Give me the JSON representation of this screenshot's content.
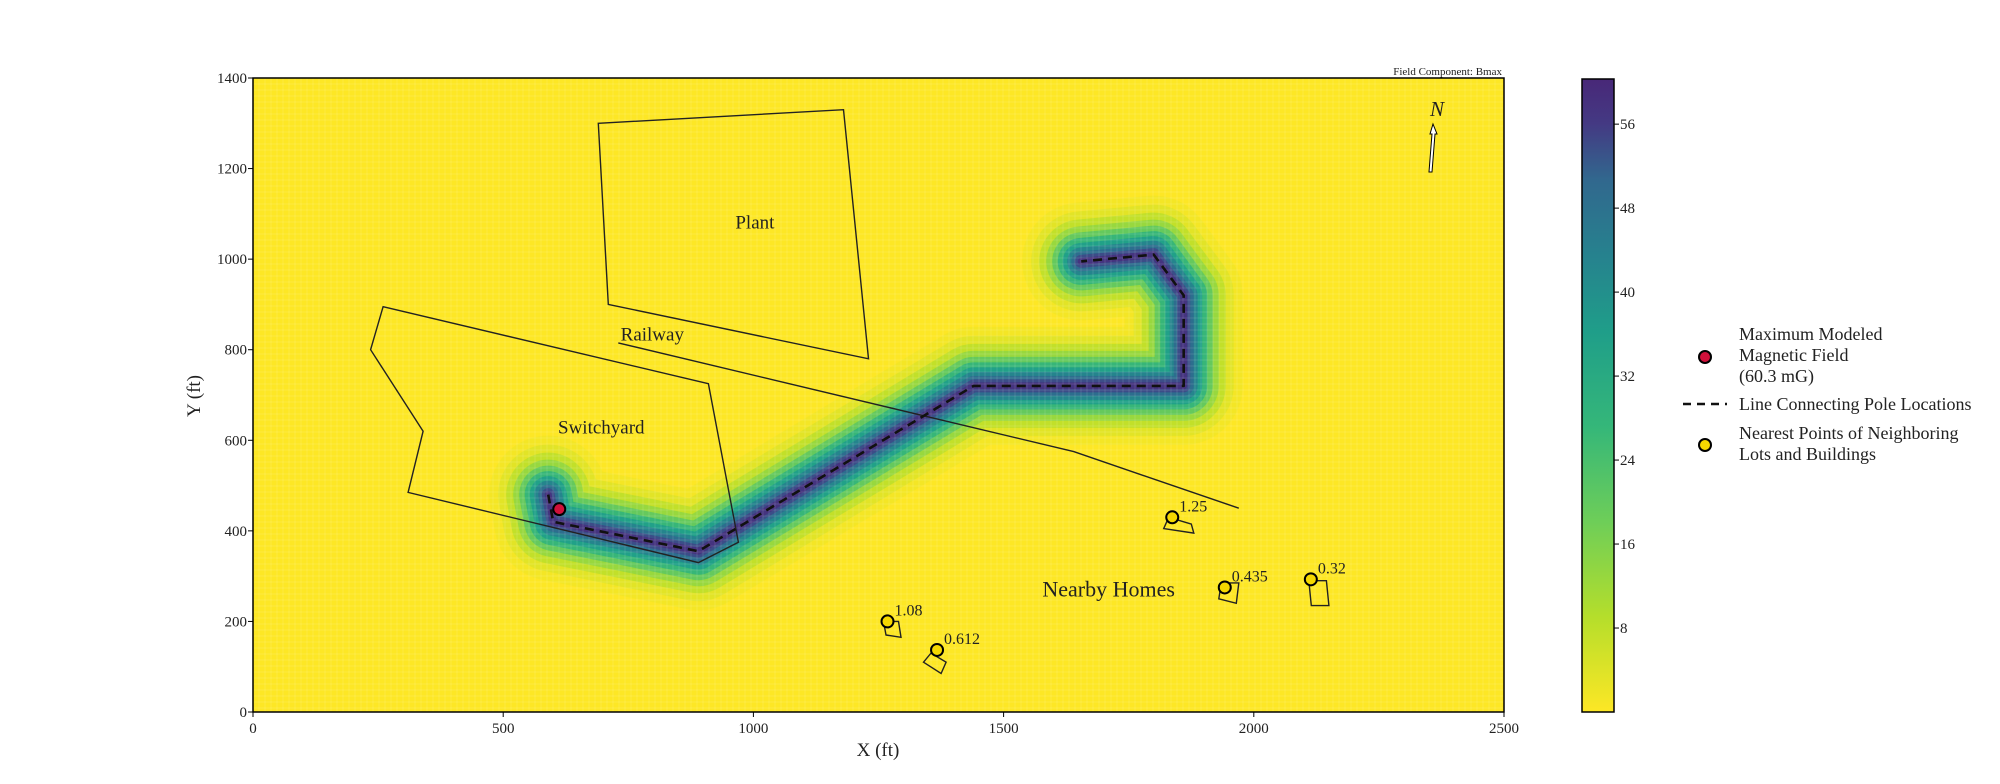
{
  "chart_data": {
    "type": "heatmap",
    "title": "Field Component: Bmax",
    "xlabel": "X (ft)",
    "ylabel": "Y (ft)",
    "xlim": [
      0,
      2500
    ],
    "ylim": [
      0,
      1400
    ],
    "xticks": [
      0,
      500,
      1000,
      1500,
      2000,
      2500
    ],
    "yticks": [
      0,
      200,
      400,
      600,
      800,
      1000,
      1200,
      1400
    ],
    "colormap": "viridis_r",
    "colorbar": {
      "min": 0,
      "max": 60.3,
      "ticks": [
        8,
        16,
        24,
        32,
        40,
        48,
        56
      ]
    },
    "line_path": [
      [
        590,
        480
      ],
      [
        600,
        420
      ],
      [
        890,
        355
      ],
      [
        1440,
        720
      ],
      [
        1860,
        720
      ],
      [
        1860,
        920
      ],
      [
        1800,
        1010
      ],
      [
        1655,
        995
      ]
    ],
    "max_point": {
      "x": 612,
      "y": 448,
      "value": 60.3
    },
    "nearest_points": [
      {
        "x": 1837,
        "y": 430,
        "label": "1.25"
      },
      {
        "x": 1942,
        "y": 275,
        "label": "0.435"
      },
      {
        "x": 2114,
        "y": 293,
        "label": "0.32"
      },
      {
        "x": 1268,
        "y": 200,
        "label": "1.08"
      },
      {
        "x": 1367,
        "y": 137,
        "label": "0.612"
      }
    ],
    "area_labels": [
      {
        "text": "Plant",
        "x": 1003,
        "y": 1068
      },
      {
        "text": "Railway",
        "x": 798,
        "y": 820
      },
      {
        "text": "Switchyard",
        "x": 696,
        "y": 615
      },
      {
        "text": "Nearby Homes",
        "x": 1710,
        "y": 255
      }
    ],
    "outlines": {
      "plant": [
        [
          690,
          1300
        ],
        [
          1180,
          1330
        ],
        [
          1230,
          780
        ],
        [
          710,
          900
        ]
      ],
      "switchyard": [
        [
          260,
          895
        ],
        [
          910,
          725
        ],
        [
          970,
          375
        ],
        [
          890,
          330
        ],
        [
          310,
          485
        ],
        [
          340,
          620
        ],
        [
          235,
          800
        ]
      ],
      "railway": [
        [
          730,
          815
        ],
        [
          1640,
          575
        ],
        [
          1970,
          450
        ]
      ],
      "homes": [
        [
          [
            1820,
            405
          ],
          [
            1880,
            395
          ],
          [
            1875,
            415
          ],
          [
            1830,
            430
          ]
        ],
        [
          [
            1930,
            250
          ],
          [
            1965,
            240
          ],
          [
            1970,
            285
          ],
          [
            1935,
            285
          ]
        ],
        [
          [
            2115,
            235
          ],
          [
            2150,
            235
          ],
          [
            2145,
            290
          ],
          [
            2110,
            290
          ]
        ],
        [
          [
            1265,
            170
          ],
          [
            1295,
            165
          ],
          [
            1290,
            200
          ],
          [
            1260,
            200
          ]
        ],
        [
          [
            1340,
            110
          ],
          [
            1375,
            85
          ],
          [
            1385,
            110
          ],
          [
            1355,
            130
          ]
        ]
      ]
    },
    "north_label": "N",
    "legend": [
      {
        "label_lines": [
          "Maximum Modeled",
          "Magnetic Field",
          "(60.3 mG)"
        ]
      },
      {
        "label_lines": [
          "Line Connecting Pole Locations"
        ]
      },
      {
        "label_lines": [
          "Nearest Points of Neighboring",
          "Lots and Buildings"
        ]
      }
    ],
    "colors": {
      "max_point": "#d0103a",
      "nearest_point": "#f5d800",
      "line": "#111111"
    }
  }
}
